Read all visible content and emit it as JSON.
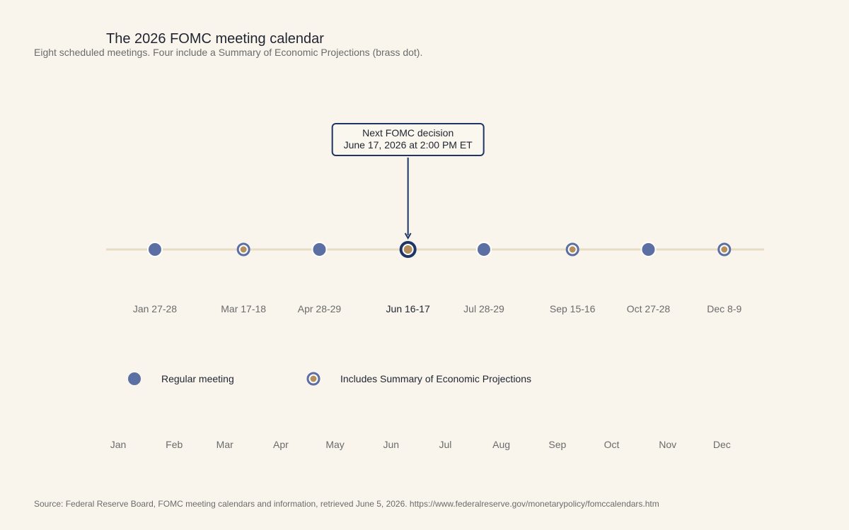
{
  "title": "The 2026 FOMC meeting calendar",
  "subtitle": "Eight scheduled meetings. Four include a Summary of Economic Projections (brass dot).",
  "source": "Source: Federal Reserve Board, FOMC meeting calendars and information, retrieved June 5, 2026. https://www.federalreserve.gov/monetarypolicy/fomccalendars.htm",
  "colors": {
    "background": "#f9f5ec",
    "meeting": "#5b6fa3",
    "sep_ring": "#5b6fa3",
    "sep_core": "#b48f5c",
    "next_ring": "#1e3566",
    "timeline": "#e8dcc4",
    "callout_border": "#1e3566",
    "text": "#1f2430",
    "muted": "#6b6b6b"
  },
  "chart_data": {
    "type": "scatter",
    "year": 2026,
    "x_axis": "date",
    "x_range": [
      "2026-01-01",
      "2026-12-31"
    ],
    "meetings": [
      {
        "label": "Jan 27-28",
        "date": "2026-01-28",
        "sep": false,
        "next": false
      },
      {
        "label": "Mar 17-18",
        "date": "2026-03-18",
        "sep": true,
        "next": false
      },
      {
        "label": "Apr 28-29",
        "date": "2026-04-29",
        "sep": false,
        "next": false
      },
      {
        "label": "Jun 16-17",
        "date": "2026-06-17",
        "sep": true,
        "next": true
      },
      {
        "label": "Jul 28-29",
        "date": "2026-07-29",
        "sep": false,
        "next": false
      },
      {
        "label": "Sep 15-16",
        "date": "2026-09-16",
        "sep": true,
        "next": false
      },
      {
        "label": "Oct 27-28",
        "date": "2026-10-28",
        "sep": false,
        "next": false
      },
      {
        "label": "Dec 8-9",
        "date": "2026-12-09",
        "sep": true,
        "next": false
      }
    ],
    "months": [
      "Jan",
      "Feb",
      "Mar",
      "Apr",
      "May",
      "Jun",
      "Jul",
      "Aug",
      "Sep",
      "Oct",
      "Nov",
      "Dec"
    ],
    "callout": {
      "line1": "Next FOMC decision",
      "line2": "June 17, 2026 at 2:00 PM ET"
    },
    "legend": [
      {
        "key": "regular",
        "label": "Regular meeting"
      },
      {
        "key": "sep",
        "label": "Includes Summary of Economic Projections"
      }
    ]
  }
}
